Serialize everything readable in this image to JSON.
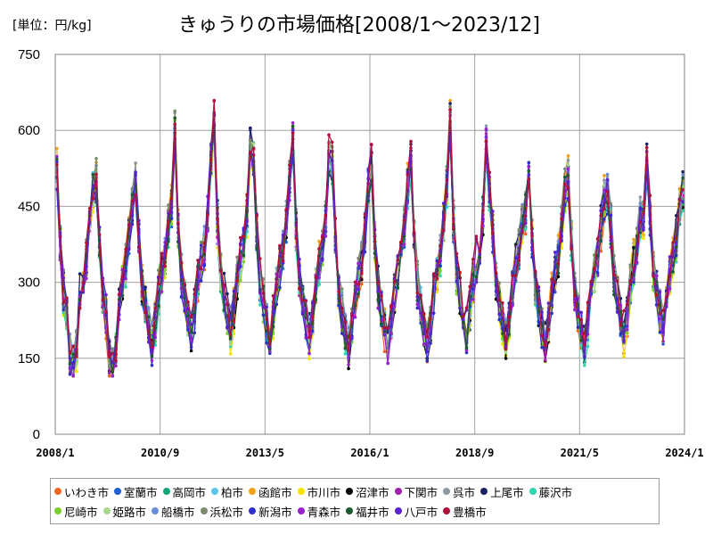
{
  "chart_data": {
    "type": "line",
    "title": "きゅうりの市場価格[2008/1～2023/12]",
    "unit": "[単位：円/kg]",
    "ylim": [
      0,
      750
    ],
    "yticks": [
      0,
      150,
      300,
      450,
      600,
      750
    ],
    "xticks": [
      "2008/1",
      "2010/9",
      "2013/5",
      "2016/1",
      "2018/9",
      "2021/5",
      "2024/1"
    ],
    "grid": true,
    "legend_position": "bottom",
    "series": [
      {
        "name": "いわき市",
        "color": "#f26522"
      },
      {
        "name": "室蘭市",
        "color": "#1f5fd6"
      },
      {
        "name": "高岡市",
        "color": "#17a37a"
      },
      {
        "name": "柏市",
        "color": "#5cc3ea"
      },
      {
        "name": "函館市",
        "color": "#f0a21c"
      },
      {
        "name": "市川市",
        "color": "#f5e400"
      },
      {
        "name": "沼津市",
        "color": "#000000"
      },
      {
        "name": "下関市",
        "color": "#a020b0"
      },
      {
        "name": "呉市",
        "color": "#8a9aa2"
      },
      {
        "name": "上尾市",
        "color": "#1b2066"
      },
      {
        "name": "藤沢市",
        "color": "#2fd4b0"
      },
      {
        "name": "尼崎市",
        "color": "#7ccf2a"
      },
      {
        "name": "姫路市",
        "color": "#a9d88c"
      },
      {
        "name": "船橋市",
        "color": "#6a8fd8"
      },
      {
        "name": "浜松市",
        "color": "#7a8a6a"
      },
      {
        "name": "新潟市",
        "color": "#2e2ec8"
      },
      {
        "name": "青森市",
        "color": "#9a22cc"
      },
      {
        "name": "福井市",
        "color": "#1d5a32"
      },
      {
        "name": "八戸市",
        "color": "#5a22cc"
      },
      {
        "name": "豊橋市",
        "color": "#b0103a"
      }
    ]
  }
}
